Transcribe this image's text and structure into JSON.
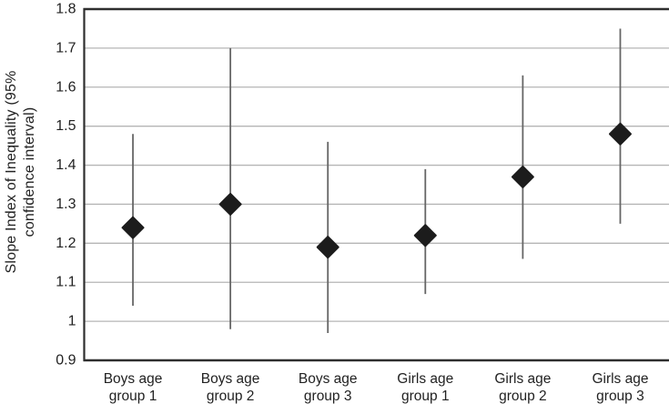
{
  "chart_data": {
    "type": "scatter",
    "subtype": "point-estimates-with-95ci-error-bars",
    "marker": "diamond",
    "legend": "none",
    "grid": "horizontal",
    "ylabel": "Slope Index of Inequality (95% confidence interval)",
    "ylabel_lines": [
      "Slope Index of Inequality (95%",
      "confidence interval)"
    ],
    "xlabel": "",
    "ylim": [
      0.9,
      1.8
    ],
    "ytick_values": [
      0.9,
      1,
      1.1,
      1.2,
      1.3,
      1.4,
      1.5,
      1.6,
      1.7,
      1.8
    ],
    "ytick_labels": [
      "0.9",
      "1",
      "1.1",
      "1.2",
      "1.3",
      "1.4",
      "1.5",
      "1.6",
      "1.7",
      "1.8"
    ],
    "categories": [
      {
        "label": "Boys age group 1",
        "line1": "Boys age",
        "line2": "group 1"
      },
      {
        "label": "Boys age group 2",
        "line1": "Boys age",
        "line2": "group 2"
      },
      {
        "label": "Boys age group 3",
        "line1": "Boys age",
        "line2": "group 3"
      },
      {
        "label": "Girls age group 1",
        "line1": "Girls age",
        "line2": "group 1"
      },
      {
        "label": "Girls age group 2",
        "line1": "Girls age",
        "line2": "group 2"
      },
      {
        "label": "Girls age group 3",
        "line1": "Girls age",
        "line2": "group 3"
      }
    ],
    "series": [
      {
        "name": "Slope Index of Inequality",
        "values": [
          1.24,
          1.3,
          1.19,
          1.22,
          1.37,
          1.48
        ],
        "ci_low": [
          1.04,
          0.98,
          0.97,
          1.07,
          1.16,
          1.25
        ],
        "ci_high": [
          1.48,
          1.7,
          1.46,
          1.39,
          1.63,
          1.75
        ]
      }
    ],
    "colors": {
      "background": "#ffffff",
      "marker": "#1c1c1c",
      "error_bar": "#666666",
      "gridline": "#b5b5b5",
      "axis": "#2e2e2e",
      "text": "#222222"
    }
  }
}
